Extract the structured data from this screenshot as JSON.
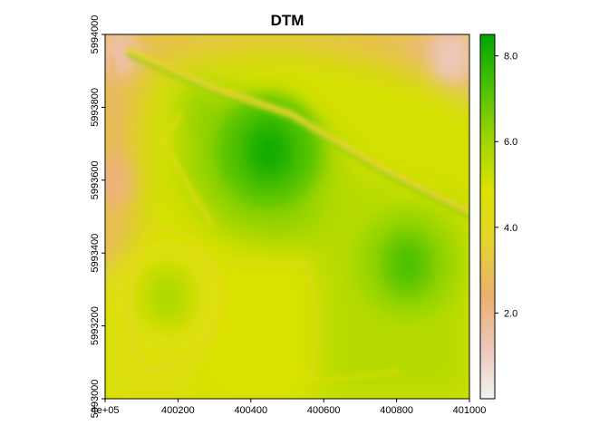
{
  "chart_data": {
    "type": "heatmap",
    "title": "DTM",
    "xlabel": "",
    "ylabel": "",
    "xlim": [
      400000,
      401000
    ],
    "ylim": [
      5993000,
      5994000
    ],
    "x_ticks": [
      {
        "value": 400000,
        "label": "4e+05"
      },
      {
        "value": 400200,
        "label": "400200"
      },
      {
        "value": 400400,
        "label": "400400"
      },
      {
        "value": 400600,
        "label": "400600"
      },
      {
        "value": 400800,
        "label": "400800"
      },
      {
        "value": 401000,
        "label": "401000"
      }
    ],
    "y_ticks": [
      {
        "value": 5993000,
        "label": "5993000"
      },
      {
        "value": 5993200,
        "label": "5993200"
      },
      {
        "value": 5993400,
        "label": "5993400"
      },
      {
        "value": 5993600,
        "label": "5993600"
      },
      {
        "value": 5993800,
        "label": "5993800"
      },
      {
        "value": 5994000,
        "label": "5994000"
      }
    ],
    "value_range": [
      0,
      8.5
    ],
    "colorbar": {
      "ticks": [
        {
          "value": 2.0,
          "label": "2.0"
        },
        {
          "value": 4.0,
          "label": "4.0"
        },
        {
          "value": 6.0,
          "label": "6.0"
        },
        {
          "value": 8.0,
          "label": "8.0"
        }
      ],
      "colors": [
        "#f2f2f2",
        "#eec6b6",
        "#ebb06e",
        "#e6d42d",
        "#dce200",
        "#9cd500",
        "#4bc100",
        "#00a600"
      ]
    },
    "surface_features": {
      "depressions_high": [
        {
          "x": 400450,
          "y": 5993680,
          "value": 8.3
        },
        {
          "x": 400830,
          "y": 5993370,
          "value": 7.3
        },
        {
          "x": 400170,
          "y": 5993280,
          "value": 5.8
        }
      ],
      "ridges_low": [
        {
          "name": "north-west corner",
          "x": 400040,
          "y": 5993950,
          "value": 1.5
        },
        {
          "name": "north-east corner",
          "x": 400950,
          "y": 5993940,
          "value": 1.2
        },
        {
          "name": "western strip",
          "x": 400020,
          "y": 5993600,
          "value": 2.2
        }
      ]
    }
  }
}
